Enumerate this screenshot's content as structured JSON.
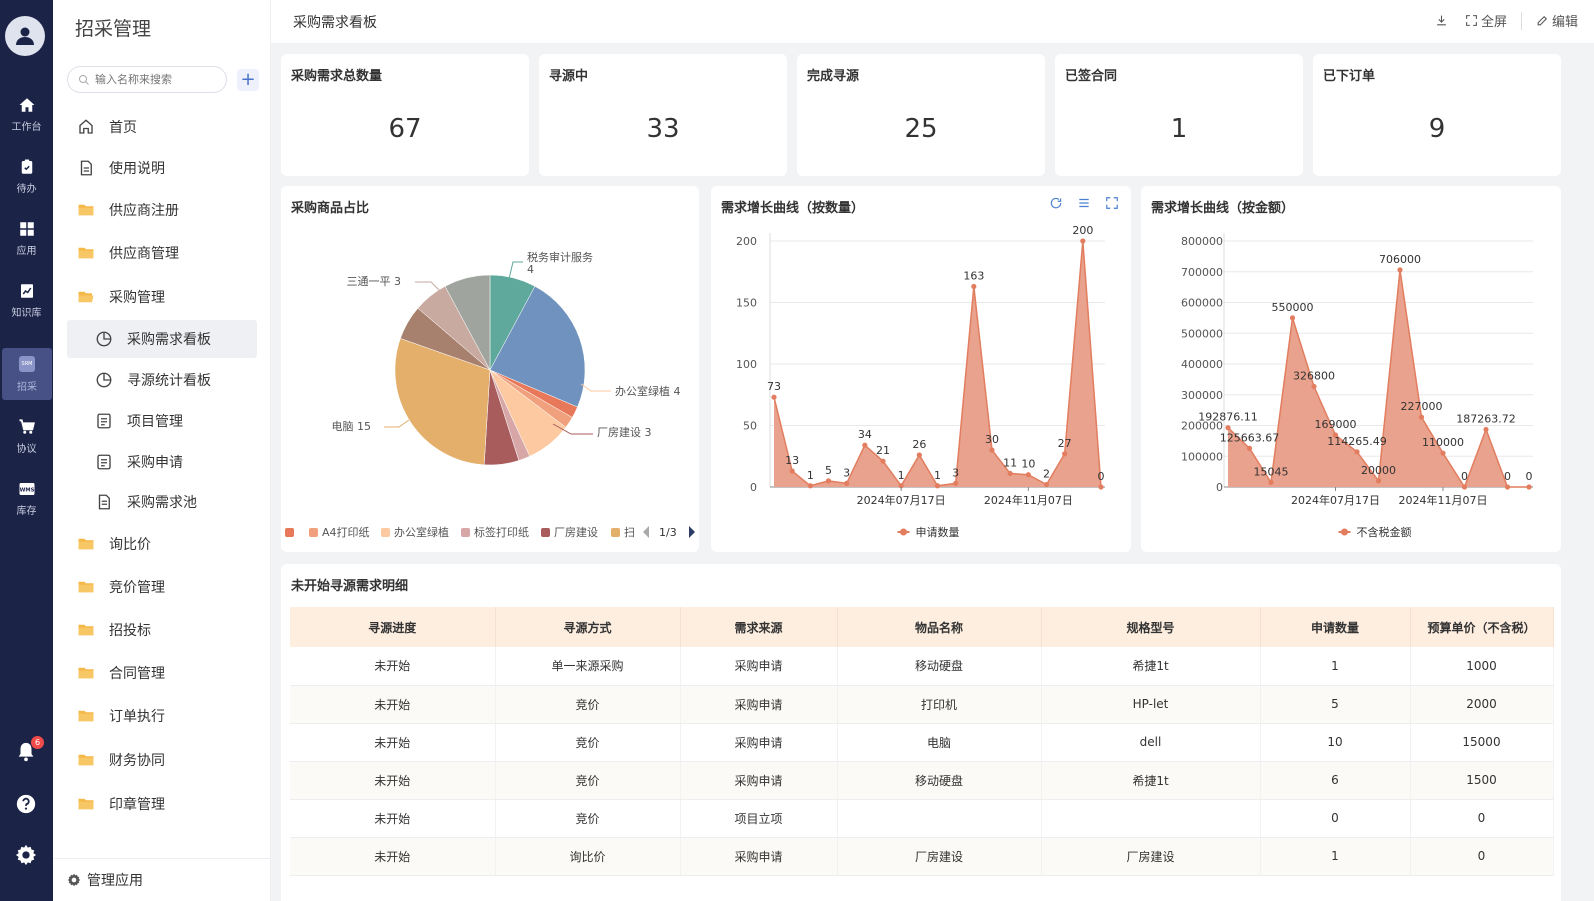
{
  "rail": {
    "items": [
      {
        "label": "工作台",
        "icon": "home-icon"
      },
      {
        "label": "待办",
        "icon": "clipboard-icon"
      },
      {
        "label": "应用",
        "icon": "grid-icon"
      },
      {
        "label": "知识库",
        "icon": "chart-book-icon"
      },
      {
        "label": "招采",
        "icon": "srm-icon"
      },
      {
        "label": "协议",
        "icon": "cart-icon"
      },
      {
        "label": "库存",
        "icon": "wms-icon"
      }
    ],
    "srm_text": "SRM",
    "wms_text": "WMS",
    "notification_count": "6"
  },
  "menu": {
    "title": "招采管理",
    "search_placeholder": "输入名称来搜索",
    "items": [
      {
        "label": "首页",
        "icon": "home-outline-icon"
      },
      {
        "label": "使用说明",
        "icon": "document-icon"
      },
      {
        "label": "供应商注册",
        "icon": "folder-icon"
      },
      {
        "label": "供应商管理",
        "icon": "folder-icon"
      },
      {
        "label": "采购管理",
        "icon": "folder-open-icon"
      },
      {
        "label": "采购需求看板",
        "icon": "pie-icon"
      },
      {
        "label": "寻源统计看板",
        "icon": "pie-icon"
      },
      {
        "label": "项目管理",
        "icon": "list-icon"
      },
      {
        "label": "采购申请",
        "icon": "list-icon"
      },
      {
        "label": "采购需求池",
        "icon": "file-icon"
      },
      {
        "label": "询比价",
        "icon": "folder-icon"
      },
      {
        "label": "竞价管理",
        "icon": "folder-icon"
      },
      {
        "label": "招投标",
        "icon": "folder-icon"
      },
      {
        "label": "合同管理",
        "icon": "folder-icon"
      },
      {
        "label": "订单执行",
        "icon": "folder-icon"
      },
      {
        "label": "财务协同",
        "icon": "folder-icon"
      },
      {
        "label": "印章管理",
        "icon": "folder-icon"
      }
    ],
    "footer": "管理应用"
  },
  "header": {
    "title": "采购需求看板",
    "fullscreen": "全屏",
    "edit": "编辑"
  },
  "stats": [
    {
      "label": "采购需求总数量",
      "value": "67"
    },
    {
      "label": "寻源中",
      "value": "33"
    },
    {
      "label": "完成寻源",
      "value": "25"
    },
    {
      "label": "已签合同",
      "value": "1"
    },
    {
      "label": "已下订单",
      "value": "9"
    }
  ],
  "pie_title": "采购商品占比",
  "line1_title": "需求增长曲线（按数量）",
  "line2_title": "需求增长曲线（按金额）",
  "table_title": "未开始寻源需求明细",
  "colors": {
    "accent_orange": "#e27d5f",
    "area_fill": "#e9a28d"
  },
  "chart_data": [
    {
      "type": "pie",
      "title": "采购商品占比",
      "slices": [
        {
          "name": "税务审计服务",
          "value": 4,
          "color": "#5fa89c"
        },
        {
          "name": "",
          "value": 12,
          "color": "#7092be"
        },
        {
          "name": "",
          "value": 1,
          "color": "#e8785a"
        },
        {
          "name": "A4打印纸",
          "value": 1,
          "color": "#f1a07e"
        },
        {
          "name": "办公室绿植",
          "value": 4,
          "color": "#fcc9a0"
        },
        {
          "name": "标签打印纸",
          "value": 1,
          "color": "#d7a7a8"
        },
        {
          "name": "厂房建设",
          "value": 3,
          "color": "#a85c5c"
        },
        {
          "name": "电脑",
          "value": 15,
          "color": "#e3af6b"
        },
        {
          "name": "",
          "value": 3,
          "color": "#a8806e"
        },
        {
          "name": "三通一平",
          "value": 3,
          "color": "#c9aaa0"
        },
        {
          "name": "",
          "value": 4,
          "color": "#9fa59e"
        }
      ],
      "outer_labels": [
        {
          "text": "税务审计服务",
          "value": "4"
        },
        {
          "text": "三通一平 3"
        },
        {
          "text": "办公室绿植 4"
        },
        {
          "text": "厂房建设 3"
        },
        {
          "text": "电脑 15"
        }
      ],
      "legend": [
        "A4打印纸",
        "办公室绿植",
        "标签打印纸",
        "厂房建设",
        "扫"
      ],
      "legend_page": "1/3"
    },
    {
      "type": "area",
      "title": "需求增长曲线（按数量）",
      "series_name": "申请数量",
      "y_ticks": [
        "0",
        "50",
        "100",
        "150",
        "200"
      ],
      "ylim": [
        0,
        200
      ],
      "x_tick_labels": [
        "2024年07月17日",
        "2024年11月07日"
      ],
      "values": [
        73,
        13,
        1,
        5,
        3,
        34,
        21,
        1,
        26,
        1,
        3,
        163,
        30,
        11,
        10,
        2,
        27,
        200,
        0
      ],
      "label_values": [
        "73",
        "13",
        "1",
        "5",
        "3",
        "34",
        "21",
        "1",
        "26",
        "1",
        "3",
        "163",
        "30",
        "11",
        "10",
        "2",
        "27",
        "200",
        "0"
      ]
    },
    {
      "type": "area",
      "title": "需求增长曲线（按金额）",
      "series_name": "不含税金额",
      "y_ticks": [
        "0",
        "100000",
        "200000",
        "300000",
        "400000",
        "500000",
        "600000",
        "700000",
        "800000"
      ],
      "ylim": [
        0,
        800000
      ],
      "x_tick_labels": [
        "2024年07月17日",
        "2024年11月07日"
      ],
      "values": [
        192876.11,
        125663.67,
        15045,
        550000,
        326800,
        169000,
        114265.49,
        20000,
        706000,
        227000,
        110000,
        0,
        187263.72,
        0,
        0
      ],
      "label_values": [
        "192876.11",
        "125663.67",
        "15045",
        "550000",
        "326800",
        "169000",
        "114265.49",
        "20000",
        "706000",
        "227000",
        "110000",
        "0",
        "187263.72",
        "0",
        "0"
      ]
    }
  ],
  "table": {
    "columns": [
      "寻源进度",
      "寻源方式",
      "需求来源",
      "物品名称",
      "规格型号",
      "申请数量",
      "预算单价（不含税）"
    ],
    "rows": [
      [
        "未开始",
        "单一来源采购",
        "采购申请",
        "移动硬盘",
        "希捷1t",
        "1",
        "1000"
      ],
      [
        "未开始",
        "竞价",
        "采购申请",
        "打印机",
        "HP-let",
        "5",
        "2000"
      ],
      [
        "未开始",
        "竞价",
        "采购申请",
        "电脑",
        "dell",
        "10",
        "15000"
      ],
      [
        "未开始",
        "竞价",
        "采购申请",
        "移动硬盘",
        "希捷1t",
        "6",
        "1500"
      ],
      [
        "未开始",
        "竞价",
        "项目立项",
        "",
        "",
        "0",
        "0"
      ],
      [
        "未开始",
        "询比价",
        "采购申请",
        "厂房建设",
        "厂房建设",
        "1",
        "0"
      ]
    ]
  }
}
